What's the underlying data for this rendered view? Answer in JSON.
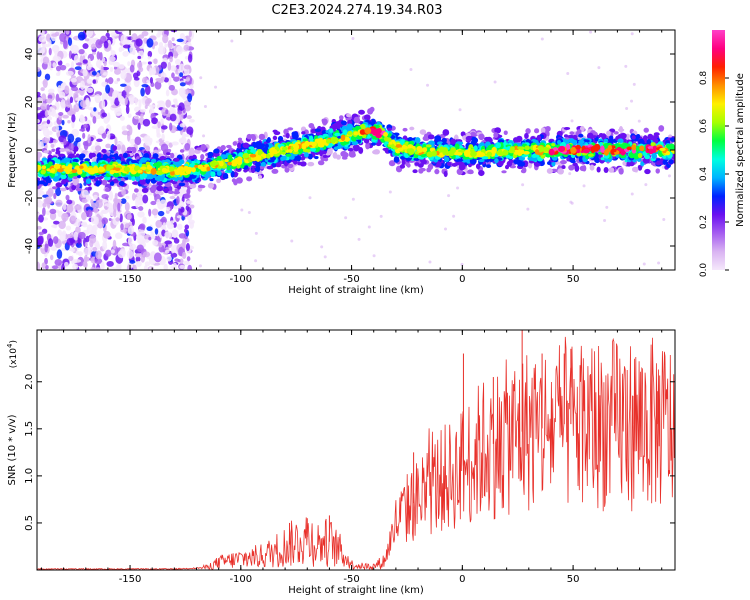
{
  "page": {
    "title": "C2E3.2024.274.19.34.R03"
  },
  "colors": {
    "snr_line": "#e8302a",
    "background": "#ffffff",
    "axis": "#000000"
  },
  "chart_data": [
    {
      "type": "heatmap",
      "xlabel": "Height of straight line (km)",
      "ylabel": "Frequency (Hz)",
      "xlim": [
        -192,
        96
      ],
      "ylim": [
        -50,
        50
      ],
      "x_ticks": [
        -150,
        -100,
        -50,
        0,
        50
      ],
      "x_tick_labels": [
        "-150",
        "-100",
        "-50",
        "0",
        "50"
      ],
      "y_ticks": [
        -40,
        -20,
        0,
        20,
        40
      ],
      "y_tick_labels": [
        "-40",
        "-20",
        "0",
        "20",
        "40"
      ],
      "ridge": {
        "x": [
          -192,
          -180,
          -170,
          -160,
          -150,
          -140,
          -130,
          -120,
          -110,
          -100,
          -90,
          -80,
          -70,
          -60,
          -50,
          -45,
          -40,
          -35,
          -30,
          -20,
          -10,
          0,
          10,
          20,
          30,
          40,
          50,
          60,
          70,
          80,
          90,
          96
        ],
        "frequency": [
          -8,
          -8,
          -8,
          -8,
          -8,
          -8,
          -9,
          -8,
          -6,
          -4,
          -2,
          0,
          2,
          4,
          6,
          8,
          8,
          6,
          1,
          0,
          -1,
          -1,
          -1,
          0,
          0,
          0,
          0,
          0,
          0,
          0,
          0,
          -1
        ]
      },
      "noise_region_x": [
        -192,
        -122
      ],
      "colorbar": {
        "label": "Normalized spectral amplitude",
        "range": [
          0,
          1
        ],
        "ticks": [
          0.0,
          0.2,
          0.4,
          0.6,
          0.8
        ],
        "tick_labels": [
          "0.0",
          "0.2",
          "0.4",
          "0.6",
          "0.8"
        ],
        "colormap": [
          "#f5e8fb",
          "#d9b3f2",
          "#a55cf0",
          "#6a10f0",
          "#0022ff",
          "#00b4ff",
          "#00ffe0",
          "#00ff40",
          "#a8ff00",
          "#fff000",
          "#ff9000",
          "#ff2000",
          "#ff0080",
          "#ff40c8"
        ]
      },
      "grid": false
    },
    {
      "type": "line",
      "xlabel": "Height of straight line (km)",
      "ylabel": "SNR (10 * v/v)",
      "y_multiplier_label": "(x10",
      "y_multiplier_exponent": "4",
      "y_multiplier_suffix": ")",
      "xlim": [
        -192,
        96
      ],
      "ylim": [
        0,
        2.55
      ],
      "x_ticks": [
        -150,
        -100,
        -50,
        0,
        50
      ],
      "x_tick_labels": [
        "-150",
        "-100",
        "-50",
        "0",
        "50"
      ],
      "y_ticks": [
        0.5,
        1.0,
        1.5,
        2.0
      ],
      "y_tick_labels": [
        "0.5",
        "1.0",
        "1.5",
        "2.0"
      ],
      "series": [
        {
          "x": [
            -192,
            -170,
            -150,
            -130,
            -120,
            -115,
            -110,
            -100,
            -90,
            -85,
            -80,
            -75,
            -70,
            -65,
            -60,
            -55,
            -50,
            -45,
            -40,
            -35,
            -32,
            -30,
            -25,
            -20,
            -15,
            -10,
            -5,
            0,
            5,
            10,
            15,
            20,
            25,
            30,
            35,
            40,
            45,
            50,
            55,
            60,
            65,
            70,
            75,
            80,
            85,
            90,
            96
          ],
          "y": [
            0.01,
            0.01,
            0.01,
            0.01,
            0.02,
            0.03,
            0.08,
            0.12,
            0.15,
            0.2,
            0.25,
            0.3,
            0.35,
            0.28,
            0.3,
            0.2,
            0.06,
            0.04,
            0.04,
            0.1,
            0.35,
            0.5,
            0.65,
            0.75,
            0.85,
            0.95,
            1.0,
            1.1,
            1.2,
            1.3,
            1.35,
            1.4,
            1.45,
            1.5,
            1.5,
            1.52,
            1.55,
            1.55,
            1.55,
            1.55,
            1.55,
            1.55,
            1.55,
            1.55,
            1.55,
            1.55,
            1.5
          ],
          "spikes": [
            {
              "x": 0.5,
              "y": 2.3
            },
            {
              "x": 27,
              "y": 2.55
            },
            {
              "x": 36,
              "y": 2.3
            },
            {
              "x": 46,
              "y": 2.3
            },
            {
              "x": 49,
              "y": 2.35
            },
            {
              "x": 14,
              "y": 2.05
            },
            {
              "x": -22,
              "y": 1.25
            },
            {
              "x": 88,
              "y": 1.9
            },
            {
              "x": 77,
              "y": 1.85
            },
            {
              "x": -70,
              "y": 0.55
            },
            {
              "x": -78,
              "y": 0.5
            },
            {
              "x": -60,
              "y": 0.58
            }
          ]
        }
      ],
      "grid": false
    }
  ]
}
